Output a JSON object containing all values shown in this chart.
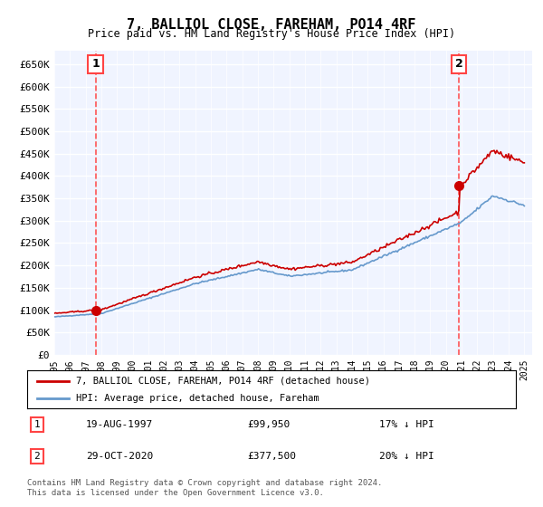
{
  "title": "7, BALLIOL CLOSE, FAREHAM, PO14 4RF",
  "subtitle": "Price paid vs. HM Land Registry's House Price Index (HPI)",
  "ylabel_ticks": [
    "£0",
    "£50K",
    "£100K",
    "£150K",
    "£200K",
    "£250K",
    "£300K",
    "£350K",
    "£400K",
    "£450K",
    "£500K",
    "£550K",
    "£600K",
    "£650K"
  ],
  "ytick_values": [
    0,
    50000,
    100000,
    150000,
    200000,
    250000,
    300000,
    350000,
    400000,
    450000,
    500000,
    550000,
    600000,
    650000
  ],
  "x_start_year": 1995,
  "x_end_year": 2025,
  "sale1_date": 1997.63,
  "sale1_price": 99950,
  "sale1_label": "1",
  "sale2_date": 2020.83,
  "sale2_price": 377500,
  "sale2_label": "2",
  "legend_line1": "7, BALLIOL CLOSE, FAREHAM, PO14 4RF (detached house)",
  "legend_line2": "HPI: Average price, detached house, Fareham",
  "annotation1_date": "19-AUG-1997",
  "annotation1_price": "£99,950",
  "annotation1_hpi": "17% ↓ HPI",
  "annotation2_date": "29-OCT-2020",
  "annotation2_price": "£377,500",
  "annotation2_hpi": "20% ↓ HPI",
  "footer": "Contains HM Land Registry data © Crown copyright and database right 2024.\nThis data is licensed under the Open Government Licence v3.0.",
  "bg_color": "#f0f4ff",
  "grid_color": "#ffffff",
  "red_line_color": "#cc0000",
  "blue_line_color": "#6699cc",
  "dashed_line_color": "#ff4444"
}
